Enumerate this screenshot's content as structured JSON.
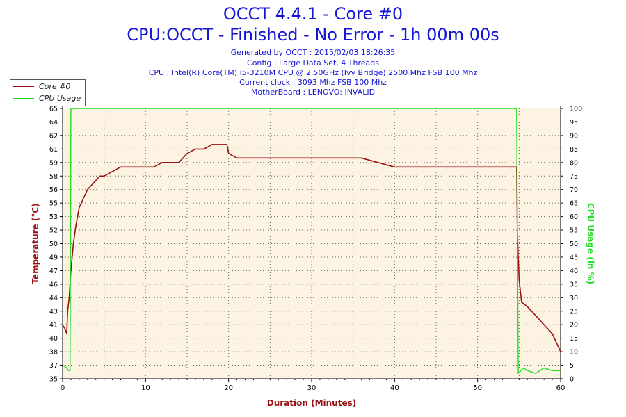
{
  "header": {
    "title": "OCCT 4.4.1 - Core #0",
    "subtitle": "CPU:OCCT - Finished - No Error - 1h 00m 00s",
    "info_lines": [
      "Generated by OCCT : 2015/02/03 18:26:35",
      "Config : Large Data Set, 4 Threads",
      "CPU : Intel(R) Core(TM) i5-3210M CPU @ 2.50GHz (Ivy Bridge) 2500 Mhz FSB 100 Mhz",
      "Current clock : 3093 Mhz FSB 100 Mhz",
      "MotherBoard : LENOVO: INVALID"
    ]
  },
  "colors": {
    "title": "#1515d6",
    "temperature": "#991111",
    "cpu_usage": "#22dd22",
    "plot_bg": "#fdf3e2",
    "axis_label": "#991111"
  },
  "chart_data": {
    "type": "line",
    "title": "OCCT 4.4.1 - Core #0",
    "xlabel": "Duration (Minutes)",
    "ylabel": "Temperature (°C)",
    "y2label": "CPU Usage (in %)",
    "xlim": [
      0,
      60
    ],
    "ylim": [
      35,
      65
    ],
    "y2lim": [
      0,
      100
    ],
    "x_ticks": [
      "0",
      "10",
      "20",
      "30",
      "40",
      "50",
      "60"
    ],
    "y_ticks": [
      "35",
      "37",
      "38",
      "40",
      "41",
      "43",
      "44",
      "46",
      "47",
      "49",
      "50",
      "52",
      "53",
      "55",
      "56",
      "58",
      "59",
      "61",
      "62",
      "64",
      "65"
    ],
    "y_ticks_values": [
      35,
      36.5,
      38,
      39.5,
      41,
      42.5,
      44,
      45.5,
      47,
      48.5,
      50,
      51.5,
      53,
      54.5,
      56,
      57.5,
      59,
      60.5,
      62,
      63.5,
      65
    ],
    "y2_ticks": [
      "0",
      "5",
      "10",
      "15",
      "20",
      "25",
      "30",
      "35",
      "40",
      "45",
      "50",
      "55",
      "60",
      "65",
      "70",
      "75",
      "80",
      "85",
      "90",
      "95",
      "100"
    ],
    "grid": true,
    "legend": "top-left",
    "series": [
      {
        "name": "Core #0",
        "axis": "left",
        "points": [
          [
            0,
            41
          ],
          [
            0.3,
            40.5
          ],
          [
            0.5,
            40
          ],
          [
            0.6,
            42.5
          ],
          [
            0.8,
            44
          ],
          [
            1,
            47
          ],
          [
            1.3,
            50
          ],
          [
            1.6,
            52
          ],
          [
            2,
            54
          ],
          [
            2.5,
            55
          ],
          [
            3,
            56
          ],
          [
            3.5,
            56.5
          ],
          [
            4,
            57
          ],
          [
            4.5,
            57.5
          ],
          [
            5,
            57.5
          ],
          [
            6,
            58
          ],
          [
            7,
            58.5
          ],
          [
            8,
            58.5
          ],
          [
            9,
            58.5
          ],
          [
            10,
            58.5
          ],
          [
            11,
            58.5
          ],
          [
            12,
            59
          ],
          [
            13,
            59
          ],
          [
            14,
            59
          ],
          [
            15,
            60
          ],
          [
            16,
            60.5
          ],
          [
            17,
            60.5
          ],
          [
            18,
            61
          ],
          [
            19,
            61
          ],
          [
            19.8,
            61
          ],
          [
            20,
            60
          ],
          [
            21,
            59.5
          ],
          [
            22,
            59.5
          ],
          [
            24,
            59.5
          ],
          [
            26,
            59.5
          ],
          [
            28,
            59.5
          ],
          [
            30,
            59.5
          ],
          [
            32,
            59.5
          ],
          [
            34,
            59.5
          ],
          [
            36,
            59.5
          ],
          [
            38,
            59
          ],
          [
            40,
            58.5
          ],
          [
            42,
            58.5
          ],
          [
            44,
            58.5
          ],
          [
            46,
            58.5
          ],
          [
            48,
            58.5
          ],
          [
            50,
            58.5
          ],
          [
            52,
            58.5
          ],
          [
            54,
            58.5
          ],
          [
            54.7,
            58.5
          ],
          [
            54.8,
            51
          ],
          [
            55,
            46
          ],
          [
            55.3,
            43.5
          ],
          [
            56,
            43
          ],
          [
            57,
            42
          ],
          [
            58,
            41
          ],
          [
            59,
            40
          ],
          [
            59.5,
            39
          ],
          [
            60,
            38
          ]
        ]
      },
      {
        "name": "CPU Usage",
        "axis": "right",
        "points": [
          [
            0,
            5
          ],
          [
            0.5,
            4
          ],
          [
            0.7,
            3
          ],
          [
            0.9,
            3
          ],
          [
            1.0,
            100
          ],
          [
            10,
            100
          ],
          [
            20,
            100
          ],
          [
            30,
            100
          ],
          [
            40,
            100
          ],
          [
            50,
            100
          ],
          [
            54.7,
            100
          ],
          [
            54.9,
            2
          ],
          [
            55.5,
            4
          ],
          [
            56,
            3
          ],
          [
            57,
            2
          ],
          [
            58,
            4
          ],
          [
            59,
            3
          ],
          [
            60,
            3
          ]
        ]
      }
    ]
  }
}
